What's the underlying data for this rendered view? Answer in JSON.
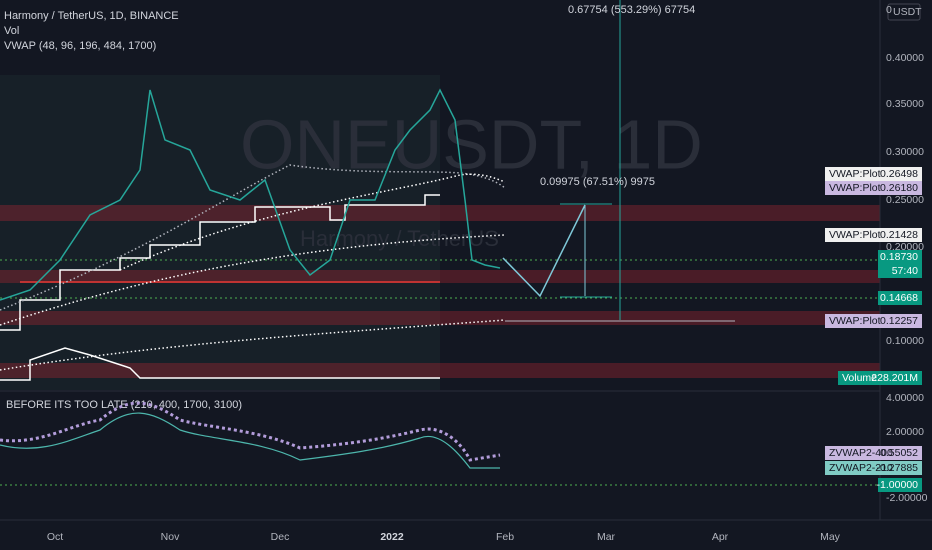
{
  "header": {
    "symbol": "Harmony / TetherUS, 1D, BINANCE",
    "vol": "Vol",
    "vwap": "VWAP (48, 96, 196, 484, 1700)",
    "indicator": "BEFORE ITS TOO LATE (210, 400, 1700, 3100)",
    "currency": "USDT"
  },
  "watermark": {
    "ticker": "ONEUSDT, 1D",
    "name": "Harmony / TetherUS"
  },
  "annotations": {
    "long_measure": "0.67754 (553.29%) 67754",
    "short_measure": "0.09975 (67.51%) 9975"
  },
  "price_axis": [
    "0",
    "0.40000",
    "0.35000",
    "0.30000",
    "0.25000",
    "0.20000",
    "0.10000"
  ],
  "price_badges": [
    {
      "name": "VWAP:Plot",
      "value": "0.26498"
    },
    {
      "name": "VWAP:Plot",
      "value": "0.26180"
    },
    {
      "name": "VWAP:Plot",
      "value": "0.21428"
    },
    {
      "value": "0.18730",
      "countdown": "57:40"
    },
    {
      "value": "0.14668"
    },
    {
      "name": "VWAP:Plot",
      "value": "0.12257"
    },
    {
      "name": "Volume",
      "value": "228.201M"
    }
  ],
  "indicator_axis": [
    "4.00000",
    "2.00000",
    "-2.00000"
  ],
  "indicator_badges": [
    {
      "name": "ZVWAP2-400",
      "value": "0.55052"
    },
    {
      "name": "ZVWAP2-210",
      "value": "-0.27885"
    },
    {
      "value": "-1.00000"
    }
  ],
  "time_axis": [
    "Oct",
    "Nov",
    "Dec",
    "2022",
    "Feb",
    "Mar",
    "Apr",
    "May"
  ]
}
